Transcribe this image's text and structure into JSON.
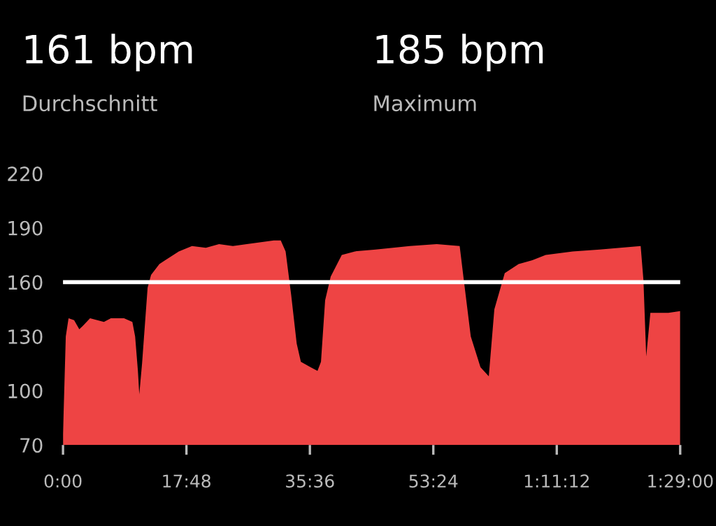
{
  "chart_data": {
    "type": "area",
    "annotations": [
      "161 bpm",
      "Durchschnitt",
      "185 bpm",
      "Maximum"
    ],
    "x": [
      0,
      0.4,
      0.8,
      1.6,
      2.35,
      2.9,
      3.9,
      5.9,
      6.9,
      8.8,
      10.0,
      10.4,
      10.8,
      11.0,
      11.4,
      12.2,
      12.7,
      13.9,
      14.7,
      16.7,
      18.6,
      20.6,
      22.5,
      24.5,
      26.5,
      30.4,
      31.4,
      32.1,
      32.9,
      33.7,
      34.3,
      35.7,
      36.7,
      37.2,
      37.8,
      38.6,
      40.2,
      42.1,
      45.1,
      50.0,
      53.9,
      57.2,
      57.8,
      58.8,
      60.2,
      61.4,
      62.2,
      63.7,
      65.7,
      67.6,
      69.6,
      73.5,
      77.4,
      83.3,
      83.7,
      84.1,
      84.7,
      87.3,
      89
    ],
    "series": [
      {
        "color": "#ee4444",
        "values": [
          76,
          130,
          140,
          139,
          134,
          136,
          140,
          138,
          140,
          140,
          138,
          130,
          111,
          98,
          115,
          157,
          164,
          170,
          172,
          177,
          180,
          179,
          181,
          180,
          181,
          183,
          183,
          177,
          153,
          126,
          116,
          113,
          111,
          116,
          150,
          163,
          175,
          177,
          178,
          180,
          181,
          180,
          161,
          130,
          113,
          108,
          145,
          165,
          170,
          172,
          175,
          177,
          178,
          180,
          161,
          119,
          143,
          143,
          144
        ]
      }
    ],
    "xlim": [
      0,
      89
    ],
    "xticks": [
      {
        "value": 0,
        "label": "0:00"
      },
      {
        "value": 17.8,
        "label": "17:48"
      },
      {
        "value": 35.6,
        "label": "35:36"
      },
      {
        "value": 53.4,
        "label": "53:24"
      },
      {
        "value": 71.2,
        "label": "1:11:12"
      },
      {
        "value": 89,
        "label": "1:29:00"
      }
    ],
    "ylim": [
      70,
      220
    ],
    "yticks": [
      70,
      100,
      130,
      160,
      190,
      220
    ],
    "ref_lines": [
      {
        "axis": "y",
        "value": 160,
        "color": "#ffffff"
      }
    ],
    "grid": false,
    "legend": false
  }
}
